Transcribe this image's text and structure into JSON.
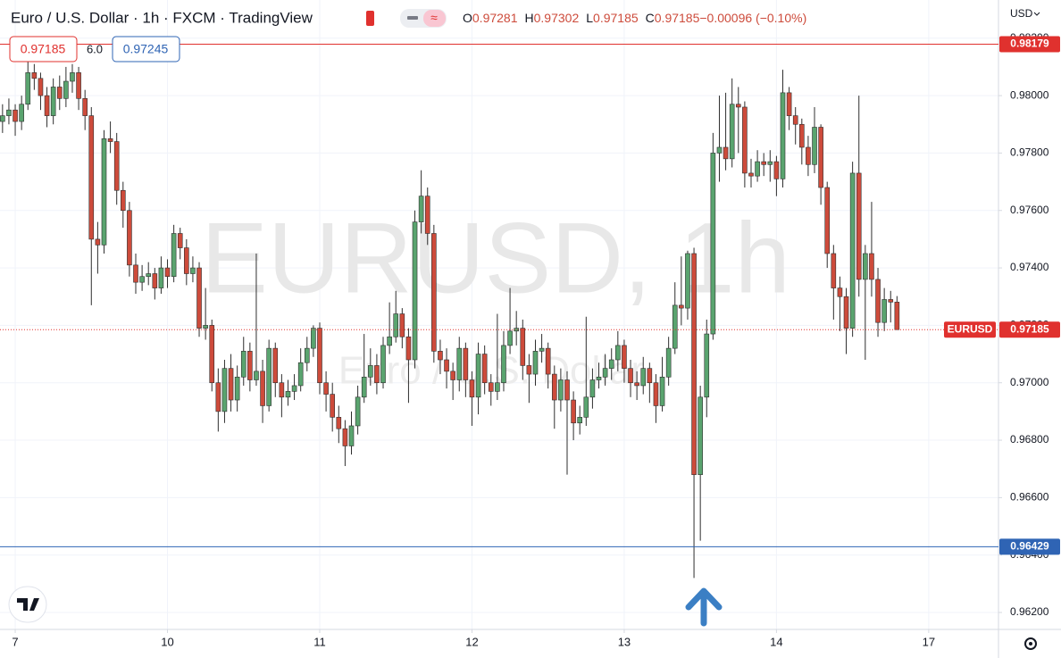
{
  "chart_data": {
    "type": "candlestick",
    "title": "Euro / U.S. Dollar · 1h · FXCM · TradingView",
    "header_values": [
      {
        "key": "O",
        "value": "0.97281"
      },
      {
        "key": "H",
        "value": "0.97302"
      },
      {
        "key": "L",
        "value": "0.97185"
      },
      {
        "key": "C",
        "value": "0.97185"
      },
      {
        "key": "",
        "value": "−0.00096 (−0.10%)"
      }
    ],
    "currency": "USD",
    "trade_buttons": {
      "sell": "0.97185",
      "spread": "6.0",
      "buy": "0.97245"
    },
    "watermark": {
      "symbol": "EURUSD, 1h",
      "description": "Euro / U.S. Dollar"
    },
    "up_color": "#5aa46f",
    "down_color": "#cd4b3b",
    "wick_color": "#2e2e2e",
    "grid": true,
    "x": [
      0,
      1,
      2,
      3,
      4,
      5,
      6,
      7,
      8,
      9,
      10,
      11,
      12,
      13,
      14,
      15,
      16,
      17,
      18,
      19,
      20,
      21,
      22,
      23,
      24,
      25,
      26,
      27,
      28,
      29,
      30,
      31,
      32,
      33,
      34,
      35,
      36,
      37,
      38,
      39,
      40,
      41,
      42,
      43,
      44,
      45,
      46,
      47,
      48,
      49,
      50,
      51,
      52,
      53,
      54,
      55,
      56,
      57,
      58,
      59,
      60,
      61,
      62,
      63,
      64,
      65,
      66,
      67,
      68,
      69,
      70,
      71,
      72,
      73,
      74,
      75,
      76,
      77,
      78,
      79,
      80,
      81,
      82,
      83,
      84,
      85,
      86,
      87,
      88,
      89,
      90,
      91,
      92,
      93,
      94,
      95,
      96,
      97,
      98,
      99,
      100,
      101,
      102,
      103,
      104,
      105,
      106,
      107,
      108,
      109,
      110,
      111,
      112,
      113,
      114,
      115,
      116,
      117,
      118,
      119,
      120,
      121,
      122,
      123,
      124,
      125,
      126,
      127,
      128,
      129,
      130,
      131,
      132,
      133,
      134,
      135,
      136,
      137,
      138,
      139,
      140,
      141
    ],
    "open": [
      0.9791,
      0.9793,
      0.9795,
      0.9791,
      0.9797,
      0.9808,
      0.9806,
      0.98,
      0.9793,
      0.9803,
      0.9799,
      0.9805,
      0.9808,
      0.9799,
      0.9793,
      0.975,
      0.9748,
      0.9785,
      0.9784,
      0.9767,
      0.976,
      0.9741,
      0.9735,
      0.9737,
      0.9738,
      0.9733,
      0.974,
      0.9737,
      0.9752,
      0.9747,
      0.9738,
      0.974,
      0.9719,
      0.972,
      0.97,
      0.969,
      0.9705,
      0.9694,
      0.9702,
      0.9711,
      0.9701,
      0.9704,
      0.9692,
      0.9712,
      0.97,
      0.9695,
      0.9697,
      0.9699,
      0.9707,
      0.9712,
      0.9719,
      0.97,
      0.9696,
      0.9688,
      0.9684,
      0.9678,
      0.9685,
      0.9695,
      0.9702,
      0.9706,
      0.97,
      0.9713,
      0.9716,
      0.9724,
      0.9716,
      0.9708,
      0.9756,
      0.9765,
      0.9752,
      0.9711,
      0.9708,
      0.9704,
      0.9701,
      0.9712,
      0.9701,
      0.9695,
      0.971,
      0.97,
      0.9697,
      0.97,
      0.9713,
      0.9718,
      0.9719,
      0.9706,
      0.9703,
      0.9711,
      0.9712,
      0.9703,
      0.9694,
      0.9701,
      0.9694,
      0.9686,
      0.9688,
      0.9695,
      0.9701,
      0.9702,
      0.9705,
      0.9708,
      0.9713,
      0.9705,
      0.97,
      0.9699,
      0.9705,
      0.97,
      0.9692,
      0.9702,
      0.9712,
      0.9727,
      0.9726,
      0.9745,
      0.9668,
      0.9695,
      0.9717,
      0.978,
      0.9782,
      0.9778,
      0.9797,
      0.9796,
      0.9773,
      0.9772,
      0.9777,
      0.9776,
      0.9777,
      0.9771,
      0.9801,
      0.9793,
      0.979,
      0.9782,
      0.9776,
      0.9789,
      0.9768,
      0.9745,
      0.9733,
      0.973,
      0.9719,
      0.9773,
      0.9736,
      0.9745,
      0.9736,
      0.9721,
      0.9729,
      0.97281
    ],
    "high": [
      0.9797,
      0.9799,
      0.9797,
      0.98,
      0.9812,
      0.9811,
      0.9808,
      0.9803,
      0.9806,
      0.9807,
      0.981,
      0.9811,
      0.981,
      0.9802,
      0.9796,
      0.9756,
      0.9788,
      0.9791,
      0.9787,
      0.977,
      0.9763,
      0.9745,
      0.9741,
      0.9742,
      0.974,
      0.9744,
      0.9743,
      0.9755,
      0.9754,
      0.975,
      0.9744,
      0.9742,
      0.9733,
      0.9722,
      0.9705,
      0.9708,
      0.971,
      0.9706,
      0.9716,
      0.9714,
      0.9745,
      0.9708,
      0.9715,
      0.9714,
      0.9703,
      0.9701,
      0.9703,
      0.9712,
      0.9716,
      0.972,
      0.9721,
      0.9704,
      0.97,
      0.9692,
      0.9687,
      0.969,
      0.9699,
      0.9717,
      0.9712,
      0.971,
      0.9716,
      0.9728,
      0.9732,
      0.9726,
      0.9719,
      0.976,
      0.9774,
      0.9768,
      0.9755,
      0.9715,
      0.9712,
      0.9707,
      0.9716,
      0.9714,
      0.9704,
      0.9714,
      0.9713,
      0.9703,
      0.9724,
      0.9718,
      0.9733,
      0.9725,
      0.9722,
      0.971,
      0.9715,
      0.9717,
      0.9714,
      0.9706,
      0.9705,
      0.9704,
      0.9697,
      0.9692,
      0.9723,
      0.9705,
      0.9707,
      0.971,
      0.9712,
      0.9718,
      0.9715,
      0.9708,
      0.9704,
      0.9709,
      0.9707,
      0.9703,
      0.9709,
      0.9716,
      0.9735,
      0.9744,
      0.9746,
      0.9747,
      0.9699,
      0.9722,
      0.9787,
      0.98,
      0.9801,
      0.9806,
      0.9803,
      0.9798,
      0.9778,
      0.9781,
      0.978,
      0.9781,
      0.9779,
      0.9809,
      0.9803,
      0.9796,
      0.9792,
      0.9786,
      0.9796,
      0.979,
      0.977,
      0.9748,
      0.9737,
      0.9733,
      0.9777,
      0.98,
      0.9748,
      0.9763,
      0.974,
      0.9733,
      0.9732,
      0.97302
    ],
    "low": [
      0.9787,
      0.979,
      0.9786,
      0.9788,
      0.9795,
      0.9802,
      0.9795,
      0.9789,
      0.979,
      0.9795,
      0.9796,
      0.9801,
      0.9795,
      0.9788,
      0.9727,
      0.9738,
      0.9745,
      0.978,
      0.9762,
      0.9754,
      0.9737,
      0.9731,
      0.9732,
      0.9734,
      0.9729,
      0.9731,
      0.9733,
      0.9735,
      0.9743,
      0.9734,
      0.9735,
      0.9716,
      0.9715,
      0.9697,
      0.9683,
      0.9686,
      0.969,
      0.969,
      0.9699,
      0.9697,
      0.9699,
      0.9686,
      0.969,
      0.9695,
      0.9688,
      0.9692,
      0.9694,
      0.9697,
      0.9704,
      0.9709,
      0.9696,
      0.969,
      0.9683,
      0.9679,
      0.9671,
      0.9675,
      0.9682,
      0.9693,
      0.9699,
      0.9696,
      0.9698,
      0.971,
      0.9714,
      0.9712,
      0.9693,
      0.9705,
      0.9752,
      0.9748,
      0.9707,
      0.9703,
      0.9698,
      0.9694,
      0.9697,
      0.9695,
      0.9685,
      0.9689,
      0.9696,
      0.9692,
      0.9694,
      0.9697,
      0.971,
      0.9713,
      0.9701,
      0.9693,
      0.9699,
      0.9707,
      0.9698,
      0.9684,
      0.969,
      0.9668,
      0.968,
      0.9682,
      0.9685,
      0.9691,
      0.9698,
      0.9699,
      0.9701,
      0.9704,
      0.97,
      0.9695,
      0.9694,
      0.9696,
      0.9693,
      0.9686,
      0.969,
      0.9699,
      0.971,
      0.972,
      0.9722,
      0.9632,
      0.9645,
      0.9688,
      0.9715,
      0.977,
      0.9774,
      0.9775,
      0.978,
      0.9768,
      0.9768,
      0.977,
      0.9772,
      0.977,
      0.9765,
      0.9768,
      0.9788,
      0.9783,
      0.9776,
      0.9772,
      0.9773,
      0.9762,
      0.974,
      0.9722,
      0.9718,
      0.971,
      0.9716,
      0.973,
      0.9708,
      0.973,
      0.9716,
      0.9718,
      0.9721,
      0.97185
    ],
    "close": [
      0.9793,
      0.9795,
      0.9791,
      0.9797,
      0.9808,
      0.9806,
      0.98,
      0.9793,
      0.9803,
      0.9799,
      0.9805,
      0.9808,
      0.9799,
      0.9793,
      0.975,
      0.9748,
      0.9785,
      0.9784,
      0.9767,
      0.976,
      0.9741,
      0.9735,
      0.9737,
      0.9738,
      0.9733,
      0.974,
      0.9737,
      0.9752,
      0.9747,
      0.9738,
      0.974,
      0.9719,
      0.972,
      0.97,
      0.969,
      0.9705,
      0.9694,
      0.9702,
      0.9711,
      0.9701,
      0.9704,
      0.9692,
      0.9712,
      0.97,
      0.9695,
      0.9697,
      0.9699,
      0.9707,
      0.9712,
      0.9719,
      0.97,
      0.9696,
      0.9688,
      0.9684,
      0.9678,
      0.9685,
      0.9695,
      0.9702,
      0.9706,
      0.97,
      0.9713,
      0.9716,
      0.9724,
      0.9716,
      0.9708,
      0.9756,
      0.9765,
      0.9752,
      0.9711,
      0.9708,
      0.9704,
      0.9701,
      0.9712,
      0.9701,
      0.9695,
      0.971,
      0.97,
      0.9697,
      0.97,
      0.9713,
      0.9718,
      0.9719,
      0.9706,
      0.9703,
      0.9711,
      0.9712,
      0.9703,
      0.9694,
      0.9701,
      0.9694,
      0.9686,
      0.9688,
      0.9695,
      0.9701,
      0.9702,
      0.9705,
      0.9708,
      0.9713,
      0.9705,
      0.97,
      0.9699,
      0.9705,
      0.97,
      0.9692,
      0.9702,
      0.9712,
      0.9727,
      0.9726,
      0.9745,
      0.9668,
      0.9695,
      0.9717,
      0.978,
      0.9782,
      0.9778,
      0.9797,
      0.9796,
      0.9773,
      0.9772,
      0.9777,
      0.9776,
      0.9777,
      0.9771,
      0.9801,
      0.9793,
      0.979,
      0.9782,
      0.9776,
      0.9789,
      0.9768,
      0.9745,
      0.9733,
      0.973,
      0.9719,
      0.9773,
      0.9736,
      0.9745,
      0.9736,
      0.9721,
      0.9729,
      0.97281,
      0.97185
    ],
    "xlim": [
      -0.4,
      157.0
    ],
    "xticks": [
      {
        "value": 2,
        "label": "7"
      },
      {
        "value": 26,
        "label": "10"
      },
      {
        "value": 50,
        "label": "11"
      },
      {
        "value": 74,
        "label": "12"
      },
      {
        "value": 98,
        "label": "13"
      },
      {
        "value": 122,
        "label": "14"
      },
      {
        "value": 146,
        "label": "17"
      }
    ],
    "ylim": [
      0.96141,
      0.98333
    ],
    "yticks": [
      {
        "value": 0.962,
        "label": "0.96200"
      },
      {
        "value": 0.964,
        "label": "0.96400"
      },
      {
        "value": 0.966,
        "label": "0.96600"
      },
      {
        "value": 0.968,
        "label": "0.96800"
      },
      {
        "value": 0.97,
        "label": "0.97000"
      },
      {
        "value": 0.972,
        "label": "0.97200"
      },
      {
        "value": 0.974,
        "label": "0.97400"
      },
      {
        "value": 0.976,
        "label": "0.97600"
      },
      {
        "value": 0.978,
        "label": "0.97800"
      },
      {
        "value": 0.98,
        "label": "0.98000"
      },
      {
        "value": 0.982,
        "label": "0.98200"
      }
    ],
    "hlines": [
      {
        "value": 0.98179,
        "color": "#e0312e"
      },
      {
        "value": 0.96429,
        "color": "#2f64b4"
      }
    ],
    "last_price": {
      "label": "EURUSD",
      "value": 0.97185,
      "color": "#e0312e"
    }
  }
}
